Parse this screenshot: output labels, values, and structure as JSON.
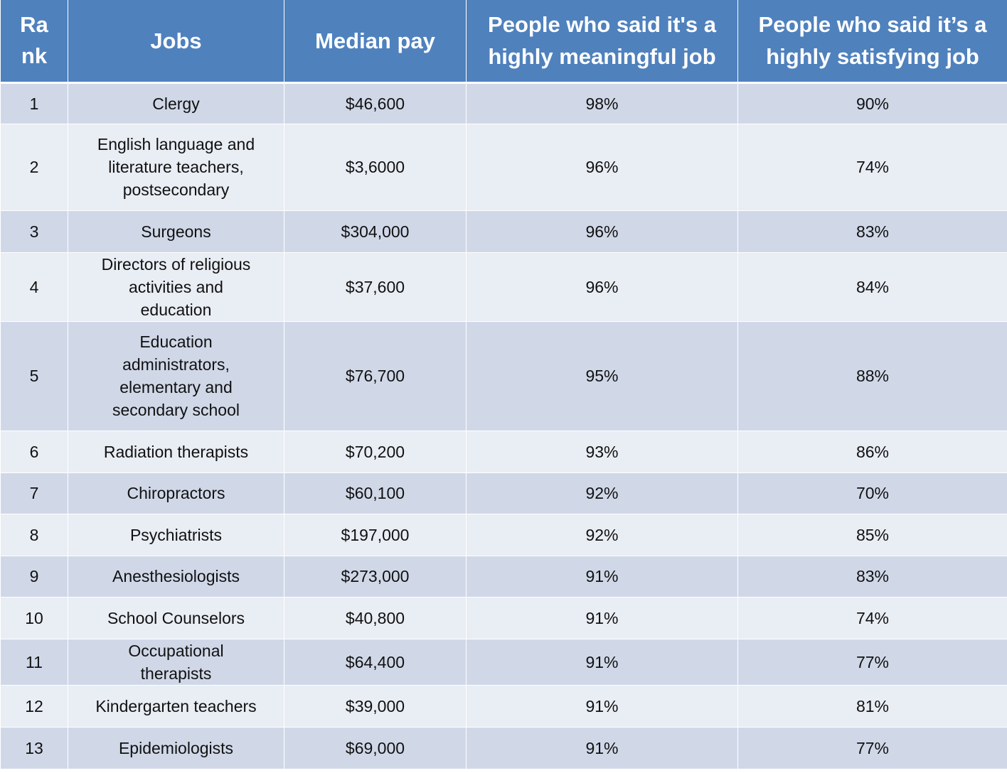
{
  "chart_data": {
    "type": "table",
    "columns": [
      "Ra nk",
      "Jobs",
      "Median pay",
      "People who said it's a highly meaningful job",
      "People who said it’s a highly satisfying job"
    ],
    "rows": [
      [
        "1",
        "Clergy",
        "$46,600",
        "98%",
        "90%"
      ],
      [
        "2",
        "English language and literature teachers, postsecondary",
        "$3,6000",
        "96%",
        "74%"
      ],
      [
        "3",
        "Surgeons",
        "$304,000",
        "96%",
        "83%"
      ],
      [
        "4",
        "Directors of religious activities and education",
        "$37,600",
        "96%",
        "84%"
      ],
      [
        "5",
        "Education administrators, elementary and secondary school",
        "$76,700",
        "95%",
        "88%"
      ],
      [
        "6",
        "Radiation therapists",
        "$70,200",
        "93%",
        "86%"
      ],
      [
        "7",
        "Chiropractors",
        "$60,100",
        "92%",
        "70%"
      ],
      [
        "8",
        "Psychiatrists",
        "$197,000",
        "92%",
        "85%"
      ],
      [
        "9",
        "Anesthesiologists",
        "$273,000",
        "91%",
        "83%"
      ],
      [
        "10",
        "School Counselors",
        "$40,800",
        "91%",
        "74%"
      ],
      [
        "11",
        "Occupational therapists",
        "$64,400",
        "91%",
        "77%"
      ],
      [
        "12",
        "Kindergarten teachers",
        "$39,000",
        "91%",
        "81%"
      ],
      [
        "13",
        "Epidemiologists",
        "$69,000",
        "91%",
        "77%"
      ]
    ]
  },
  "colors": {
    "header": "#4f81bd",
    "row_odd": "#d0d8e8",
    "row_even": "#e9edf4"
  }
}
